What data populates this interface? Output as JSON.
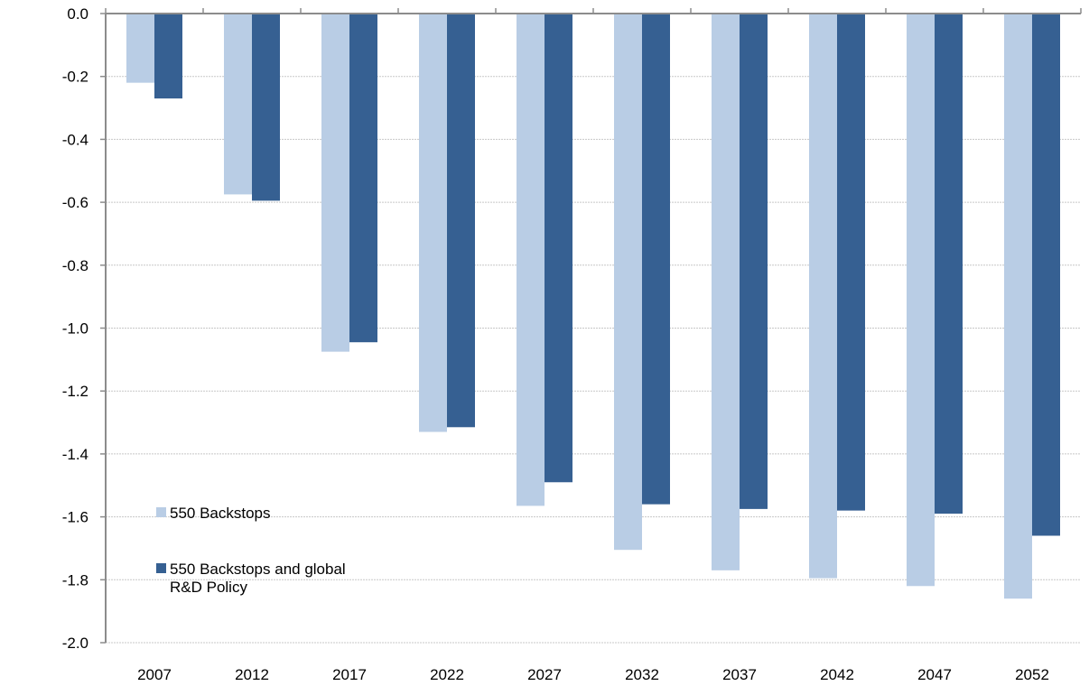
{
  "chart_data": {
    "type": "bar",
    "title": "",
    "xlabel": "",
    "ylabel": "",
    "ylim": [
      -2.0,
      0.0
    ],
    "yticks": [
      "0.0",
      "-0.2",
      "-0.4",
      "-0.6",
      "-0.8",
      "-1.0",
      "-1.2",
      "-1.4",
      "-1.6",
      "-1.8",
      "-2.0"
    ],
    "ytick_values": [
      0.0,
      -0.2,
      -0.4,
      -0.6,
      -0.8,
      -1.0,
      -1.2,
      -1.4,
      -1.6,
      -1.8,
      -2.0
    ],
    "grid": true,
    "legend_position": "bottom-left",
    "categories": [
      "2007",
      "2012",
      "2017",
      "2022",
      "2027",
      "2032",
      "2037",
      "2042",
      "2047",
      "2052"
    ],
    "series": [
      {
        "name": "550 Backstops",
        "name_lines": [
          "550 Backstops"
        ],
        "color": "#b9cde5",
        "values": [
          -0.22,
          -0.575,
          -1.075,
          -1.33,
          -1.565,
          -1.705,
          -1.77,
          -1.795,
          -1.82,
          -1.86
        ]
      },
      {
        "name": "550 Backstops and global R&D Policy",
        "name_lines": [
          "550 Backstops and global",
          "R&D Policy"
        ],
        "color": "#366092",
        "values": [
          -0.27,
          -0.595,
          -1.045,
          -1.315,
          -1.49,
          -1.56,
          -1.575,
          -1.58,
          -1.59,
          -1.66
        ]
      }
    ]
  }
}
